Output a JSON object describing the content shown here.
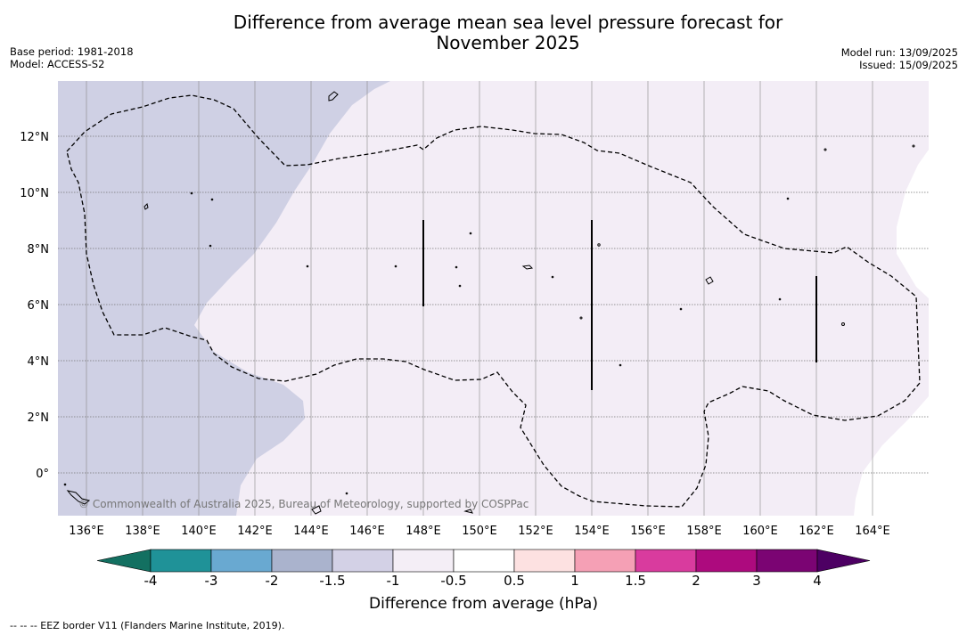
{
  "header": {
    "title_line1": "Difference from average mean sea level pressure forecast for",
    "title_line2": "November 2025",
    "base_period": "Base period: 1981-2018",
    "model": "Model: ACCESS-S2",
    "model_run": "Model run: 13/09/2025",
    "issued": "Issued: 15/09/2025"
  },
  "map": {
    "lon_ticks": [
      "136°E",
      "138°E",
      "140°E",
      "142°E",
      "144°E",
      "146°E",
      "148°E",
      "150°E",
      "152°E",
      "154°E",
      "156°E",
      "158°E",
      "160°E",
      "162°E",
      "164°E"
    ],
    "lat_ticks": [
      "12°N",
      "10°N",
      "8°N",
      "6°N",
      "4°N",
      "2°N",
      "0°"
    ],
    "copyright": "© Commonwealth of Australia 2025, Bureau of Meteorology, supported by COSPPac",
    "colors": {
      "band_-1.5_-1": "#cfd0e4",
      "band_-1_-0.5": "#f3edf6",
      "border": "#000000",
      "grid": "#999999"
    }
  },
  "colorbar": {
    "title": "Difference from average (hPa)",
    "labels": [
      "-4",
      "-3",
      "-2",
      "-1.5",
      "-1",
      "-0.5",
      "0.5",
      "1",
      "1.5",
      "2",
      "3",
      "4"
    ],
    "colors": [
      "#137061",
      "#1f9298",
      "#69a9d1",
      "#aab3cd",
      "#d3d1e6",
      "#f4eef6",
      "#ffffff",
      "#fde1e1",
      "#f5a0b5",
      "#d93b9e",
      "#ad0a7e",
      "#7b0473",
      "#4d0063"
    ]
  },
  "footnote": "--  --  -- EEZ border V11 (Flanders Marine Institute, 2019)."
}
